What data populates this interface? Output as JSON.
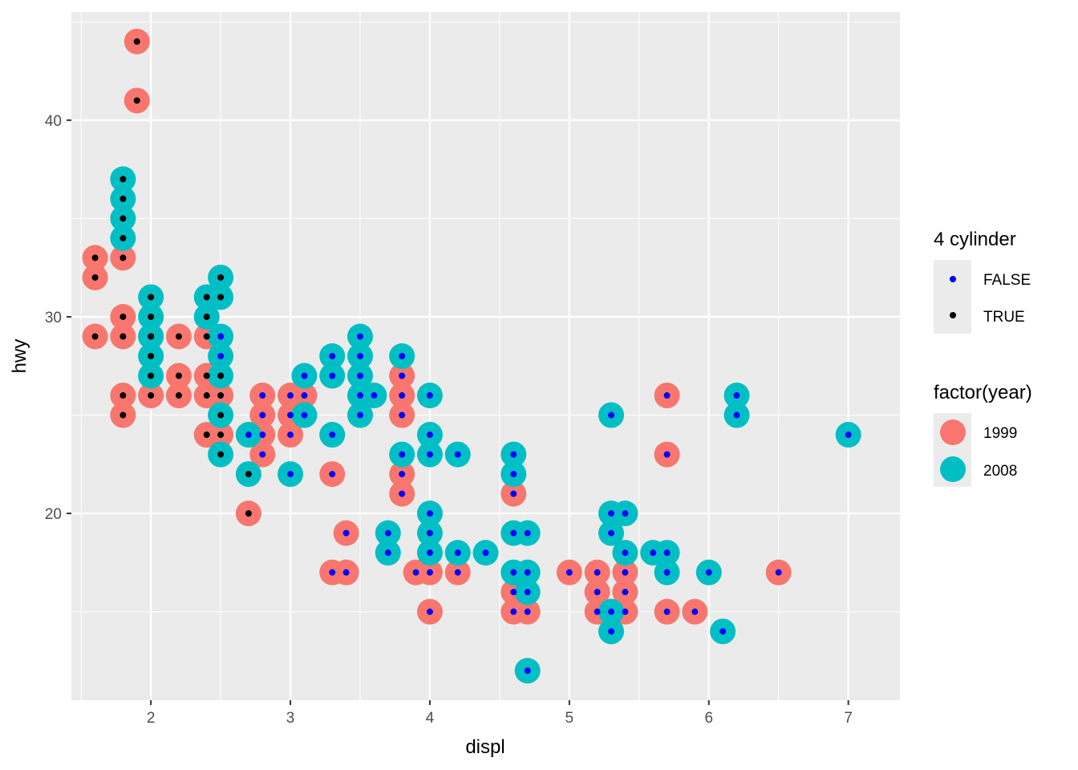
{
  "chart_data": {
    "type": "scatter",
    "xlabel": "displ",
    "ylabel": "hwy",
    "xlim": [
      1.43,
      7.37
    ],
    "ylim": [
      10.5,
      45.5
    ],
    "x_ticks": [
      2,
      3,
      4,
      5,
      6,
      7
    ],
    "y_ticks": [
      20,
      30,
      40
    ],
    "grid": true,
    "legend_position": "right",
    "legends": [
      {
        "title": "4 cylinder",
        "aesthetic": "inner point color",
        "entries": [
          {
            "label": "FALSE",
            "color": "#0000ff"
          },
          {
            "label": "TRUE",
            "color": "#000000"
          }
        ]
      },
      {
        "title": "factor(year)",
        "aesthetic": "outer point color",
        "entries": [
          {
            "label": "1999",
            "color": "#F8766D"
          },
          {
            "label": "2008",
            "color": "#00BFC4"
          }
        ]
      }
    ],
    "points_note": "each point: [displ, hwy, year, four_cylinder]",
    "points": [
      [
        1.9,
        44,
        1999,
        true
      ],
      [
        1.9,
        41,
        1999,
        true
      ],
      [
        1.8,
        37,
        2008,
        true
      ],
      [
        1.8,
        36,
        2008,
        true
      ],
      [
        1.8,
        35,
        2008,
        true
      ],
      [
        1.8,
        34,
        2008,
        true
      ],
      [
        1.6,
        33,
        1999,
        true
      ],
      [
        1.8,
        33,
        1999,
        true
      ],
      [
        1.6,
        32,
        1999,
        true
      ],
      [
        1.6,
        29,
        1999,
        true
      ],
      [
        1.8,
        30,
        1999,
        true
      ],
      [
        1.8,
        29,
        1999,
        true
      ],
      [
        1.8,
        26,
        1999,
        true
      ],
      [
        1.8,
        25,
        1999,
        true
      ],
      [
        2.0,
        31,
        2008,
        true
      ],
      [
        2.0,
        30,
        2008,
        true
      ],
      [
        2.0,
        29,
        2008,
        true
      ],
      [
        2.0,
        28,
        2008,
        true
      ],
      [
        2.0,
        27,
        2008,
        true
      ],
      [
        2.0,
        26,
        1999,
        true
      ],
      [
        2.0,
        29,
        1999,
        true
      ],
      [
        2.2,
        29,
        1999,
        true
      ],
      [
        2.2,
        27,
        1999,
        true
      ],
      [
        2.2,
        26,
        1999,
        true
      ],
      [
        2.4,
        31,
        2008,
        true
      ],
      [
        2.4,
        30,
        2008,
        true
      ],
      [
        2.4,
        29,
        1999,
        true
      ],
      [
        2.4,
        27,
        1999,
        true
      ],
      [
        2.4,
        26,
        1999,
        true
      ],
      [
        2.4,
        24,
        1999,
        true
      ],
      [
        2.5,
        32,
        2008,
        true
      ],
      [
        2.5,
        31,
        2008,
        true
      ],
      [
        2.5,
        27,
        2008,
        true
      ],
      [
        2.5,
        25,
        2008,
        true
      ],
      [
        2.5,
        23,
        2008,
        true
      ],
      [
        2.5,
        26,
        1999,
        true
      ],
      [
        2.5,
        24,
        1999,
        true
      ],
      [
        2.5,
        29,
        2008,
        false
      ],
      [
        2.5,
        28,
        2008,
        false
      ],
      [
        2.7,
        24,
        2008,
        false
      ],
      [
        2.7,
        22,
        2008,
        true
      ],
      [
        2.7,
        20,
        1999,
        true
      ],
      [
        2.8,
        26,
        1999,
        false
      ],
      [
        2.8,
        25,
        1999,
        false
      ],
      [
        2.8,
        24,
        1999,
        false
      ],
      [
        2.8,
        23,
        1999,
        false
      ],
      [
        3.0,
        26,
        1999,
        false
      ],
      [
        3.0,
        25,
        1999,
        false
      ],
      [
        3.0,
        24,
        1999,
        false
      ],
      [
        3.0,
        22,
        2008,
        false
      ],
      [
        3.1,
        27,
        2008,
        false
      ],
      [
        3.1,
        26,
        1999,
        false
      ],
      [
        3.1,
        25,
        2008,
        false
      ],
      [
        3.3,
        28,
        2008,
        false
      ],
      [
        3.3,
        27,
        2008,
        false
      ],
      [
        3.3,
        24,
        2008,
        false
      ],
      [
        3.3,
        22,
        1999,
        false
      ],
      [
        3.3,
        17,
        1999,
        false
      ],
      [
        3.4,
        19,
        1999,
        false
      ],
      [
        3.4,
        17,
        1999,
        false
      ],
      [
        3.5,
        29,
        2008,
        false
      ],
      [
        3.5,
        28,
        2008,
        false
      ],
      [
        3.5,
        27,
        2008,
        false
      ],
      [
        3.5,
        26,
        2008,
        false
      ],
      [
        3.5,
        25,
        2008,
        false
      ],
      [
        3.6,
        26,
        2008,
        false
      ],
      [
        3.7,
        19,
        2008,
        false
      ],
      [
        3.7,
        18,
        2008,
        false
      ],
      [
        3.8,
        28,
        2008,
        false
      ],
      [
        3.8,
        27,
        1999,
        false
      ],
      [
        3.8,
        26,
        1999,
        false
      ],
      [
        3.8,
        25,
        1999,
        false
      ],
      [
        3.8,
        23,
        2008,
        false
      ],
      [
        3.8,
        22,
        1999,
        false
      ],
      [
        3.8,
        21,
        1999,
        false
      ],
      [
        3.9,
        17,
        1999,
        false
      ],
      [
        4.0,
        26,
        2008,
        false
      ],
      [
        4.0,
        24,
        2008,
        false
      ],
      [
        4.0,
        23,
        2008,
        false
      ],
      [
        4.0,
        20,
        2008,
        false
      ],
      [
        4.0,
        19,
        2008,
        false
      ],
      [
        4.0,
        18,
        2008,
        false
      ],
      [
        4.0,
        17,
        1999,
        false
      ],
      [
        4.0,
        15,
        1999,
        false
      ],
      [
        4.2,
        23,
        2008,
        false
      ],
      [
        4.2,
        18,
        2008,
        false
      ],
      [
        4.2,
        17,
        1999,
        false
      ],
      [
        4.4,
        18,
        2008,
        false
      ],
      [
        4.6,
        23,
        2008,
        false
      ],
      [
        4.6,
        22,
        2008,
        false
      ],
      [
        4.6,
        21,
        1999,
        false
      ],
      [
        4.6,
        19,
        2008,
        false
      ],
      [
        4.6,
        17,
        2008,
        false
      ],
      [
        4.6,
        16,
        1999,
        false
      ],
      [
        4.6,
        15,
        1999,
        false
      ],
      [
        4.7,
        19,
        2008,
        false
      ],
      [
        4.7,
        17,
        2008,
        false
      ],
      [
        4.7,
        16,
        2008,
        false
      ],
      [
        4.7,
        15,
        1999,
        false
      ],
      [
        4.7,
        12,
        2008,
        false
      ],
      [
        5.0,
        17,
        1999,
        false
      ],
      [
        5.2,
        17,
        1999,
        false
      ],
      [
        5.2,
        16,
        1999,
        false
      ],
      [
        5.2,
        15,
        1999,
        false
      ],
      [
        5.3,
        25,
        2008,
        false
      ],
      [
        5.3,
        20,
        2008,
        false
      ],
      [
        5.3,
        19,
        2008,
        false
      ],
      [
        5.3,
        15,
        2008,
        false
      ],
      [
        5.3,
        14,
        2008,
        false
      ],
      [
        5.4,
        20,
        2008,
        false
      ],
      [
        5.4,
        18,
        2008,
        false
      ],
      [
        5.4,
        17,
        1999,
        false
      ],
      [
        5.4,
        16,
        1999,
        false
      ],
      [
        5.4,
        15,
        1999,
        false
      ],
      [
        5.6,
        18,
        2008,
        false
      ],
      [
        5.7,
        26,
        1999,
        false
      ],
      [
        5.7,
        23,
        1999,
        false
      ],
      [
        5.7,
        18,
        2008,
        false
      ],
      [
        5.7,
        17,
        2008,
        false
      ],
      [
        5.7,
        15,
        1999,
        false
      ],
      [
        5.9,
        15,
        1999,
        false
      ],
      [
        6.0,
        17,
        2008,
        false
      ],
      [
        6.1,
        14,
        2008,
        false
      ],
      [
        6.2,
        26,
        2008,
        false
      ],
      [
        6.2,
        25,
        2008,
        false
      ],
      [
        6.5,
        17,
        1999,
        false
      ],
      [
        7.0,
        24,
        2008,
        false
      ]
    ]
  }
}
